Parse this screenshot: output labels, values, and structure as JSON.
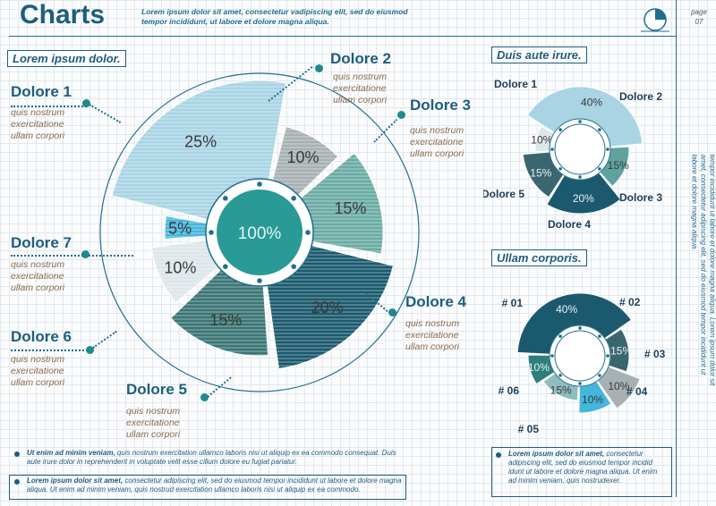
{
  "header": {
    "title": "Charts",
    "subtitle": "Lorem ipsum dolor sit amet, consectetur vadipiscing elit, sed do eiusmod  tempor incididunt, ut labore et dolore magna aliqua.",
    "page_label": "page",
    "page_number": "07"
  },
  "side_text": "Lorem ipsum dolor sit amet, consectetur adipiscing elit, sed do eiusmod tempor incididunt ut labore et dolore magna aliqua. Lorem ipsum dolor sit amet, consectetur adipiscing elit, sed do eiusmod tempor incididunt ut labore et dolore magna aliqua.",
  "main": {
    "box_title": "Lorem ipsum dolor.",
    "center_label": "100%",
    "labels": [
      {
        "name": "Dolore 1",
        "desc": "quis nostrum\nexercitatione\nullam corpori"
      },
      {
        "name": "Dolore 2",
        "desc": "quis nostrum\nexercitatione\nullam corpori"
      },
      {
        "name": "Dolore 3",
        "desc": "quis nostrum\nexercitatione\nullam corpori"
      },
      {
        "name": "Dolore 4",
        "desc": "quis nostrum\nexercitatione\nullam corpori"
      },
      {
        "name": "Dolore 5",
        "desc": "quis nostrum\nexercitatione\nullam corpori"
      },
      {
        "name": "Dolore 6",
        "desc": "quis nostrum\nexercitatione\nullam corpori"
      },
      {
        "name": "Dolore 7",
        "desc": "quis nostrum\nexercitatione\nullam corpori"
      }
    ]
  },
  "right_top": {
    "box_title": "Duis aute irure."
  },
  "right_bottom": {
    "box_title": "Ullam corporis."
  },
  "footer": {
    "note1_bold": "Ut enim ad minim veniam,",
    "note1": " quis nostrum exercitation ullamco laboris nisi ut aliquip ex ea commodo consequat. Duis aute irure dolor in reprehenderit in voluptate velit esse cillum dolore eu fugiat pariatur.",
    "note2_bold": "Lorem ipsum dolor sit amet,",
    "note2": " consectetur adipiscing elit, sed do eiusmod tempor incididunt ut labore et dolore magna aliqua. Ut enim ad minim veniam, quis nostrud exercitation ullamco laboris nisi ut aliquip ex ea commodo.",
    "note3_bold": "Lorem ipsum dolor sit amet,",
    "note3": " consectetur adipiscing elit, sed do eiusmod tempor incidid idunt ut labore et dolore magna aliqua. Ut enim ad minim veniam, quis nostrudexer."
  },
  "colors": {
    "dark": "#1b5a6e",
    "teal": "#5fa3a0",
    "light": "#a9d4e4",
    "grey": "#a7b0b3",
    "paleblue": "#dde6ea",
    "cyan": "#45b6dc",
    "accent": "#1d5e7d"
  },
  "chart_data": [
    {
      "type": "pie",
      "variant": "polar-area",
      "center_label": "100%",
      "slices": [
        {
          "name": "Dolore 1",
          "value": 25,
          "label": "25%",
          "color": "#a9d4e4"
        },
        {
          "name": "Dolore 2",
          "value": 10,
          "label": "10%",
          "color": "#a7b0b3"
        },
        {
          "name": "Dolore 3",
          "value": 15,
          "label": "15%",
          "color": "#6aaba3"
        },
        {
          "name": "Dolore 4",
          "value": 20,
          "label": "20%",
          "color": "#1b5a6e"
        },
        {
          "name": "Dolore 5",
          "value": 15,
          "label": "15%",
          "color": "#3b7575"
        },
        {
          "name": "Dolore 6",
          "value": 10,
          "label": "10%",
          "color": "#dde6ea"
        },
        {
          "name": "Dolore 7",
          "value": 5,
          "label": "5%",
          "color": "#45b6dc"
        }
      ]
    },
    {
      "type": "pie",
      "variant": "donut",
      "title": "Duis aute irure.",
      "slices": [
        {
          "name": "Dolore 1",
          "value": 40,
          "label": "40%",
          "color": "#a9d4e4"
        },
        {
          "name": "Dolore 2",
          "value": 15,
          "label": "15%",
          "color": "#5fa3a0"
        },
        {
          "name": "Dolore 3",
          "value": 20,
          "label": "20%",
          "color": "#1b5a6e"
        },
        {
          "name": "Dolore 4",
          "value": 15,
          "label": "15%",
          "color": "#3b6670"
        },
        {
          "name": "Dolore 5",
          "value": 10,
          "label": "10%",
          "color": "#dde6ea"
        }
      ]
    },
    {
      "type": "pie",
      "variant": "donut",
      "title": "Ullam corporis.",
      "slices": [
        {
          "name": "# 01",
          "value": 40,
          "label": "40%",
          "color": "#1b5a6e"
        },
        {
          "name": "# 02",
          "value": 15,
          "label": "15%",
          "color": "#3b6670"
        },
        {
          "name": "# 03",
          "value": 10,
          "label": "10%",
          "color": "#a7b0b3"
        },
        {
          "name": "# 04",
          "value": 10,
          "label": "10%",
          "color": "#45b6dc"
        },
        {
          "name": "# 05",
          "value": 15,
          "label": "15%",
          "color": "#8fbcbc"
        },
        {
          "name": "# 06",
          "value": 10,
          "label": "10%",
          "color": "#2e7f7c"
        }
      ]
    }
  ]
}
